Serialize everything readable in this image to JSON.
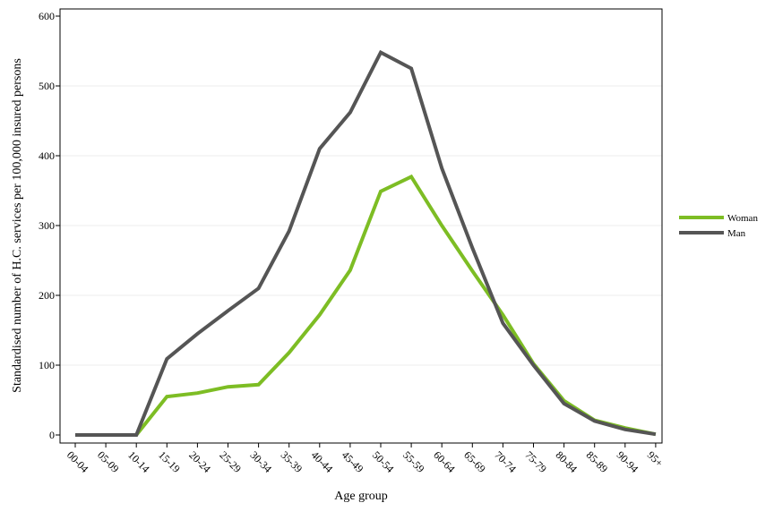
{
  "chart_data": {
    "type": "line",
    "xlabel": "Age group",
    "ylabel": "Standardised number of H.C. services per 100,000 insured persons",
    "ylim": [
      0,
      600
    ],
    "yticks": [
      0,
      100,
      200,
      300,
      400,
      500,
      600
    ],
    "grid": "horizontal",
    "legend_position": "right",
    "categories": [
      "00-04",
      "05-09",
      "10-14",
      "15-19",
      "20-24",
      "25-29",
      "30-34",
      "35-39",
      "40-44",
      "45-49",
      "50-54",
      "55-59",
      "60-64",
      "65-69",
      "70-74",
      "75-79",
      "80-84",
      "85-89",
      "90-94",
      "95+"
    ],
    "series": [
      {
        "name": "Woman",
        "color": "#7dbd24",
        "values": [
          0,
          0,
          0,
          55,
          60,
          69,
          72,
          118,
          172,
          236,
          349,
          370,
          300,
          235,
          172,
          102,
          49,
          21,
          10,
          1
        ]
      },
      {
        "name": "Man",
        "color": "#555555",
        "values": [
          0,
          0,
          0,
          109,
          145,
          178,
          210,
          292,
          410,
          462,
          548,
          525,
          382,
          268,
          160,
          100,
          45,
          20,
          8,
          1
        ]
      }
    ]
  }
}
